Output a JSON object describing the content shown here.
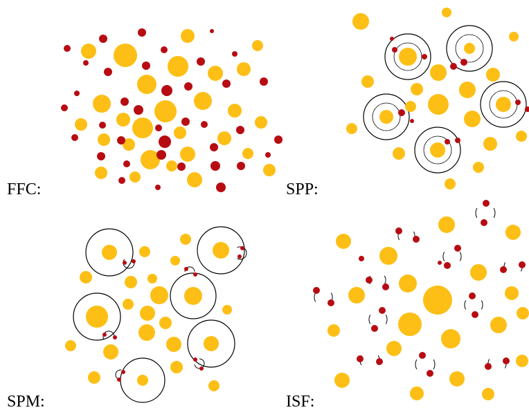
{
  "colors": {
    "large_particle": "#FDBF16",
    "small_particle": "#B70C12",
    "orbit": "#000000",
    "background": "#FFFFFF"
  },
  "panels": [
    {
      "id": "ffc",
      "label": "FFC:"
    },
    {
      "id": "spp",
      "label": "SPP:"
    },
    {
      "id": "spm",
      "label": "SPM:"
    },
    {
      "id": "isf",
      "label": "ISF:"
    }
  ]
}
